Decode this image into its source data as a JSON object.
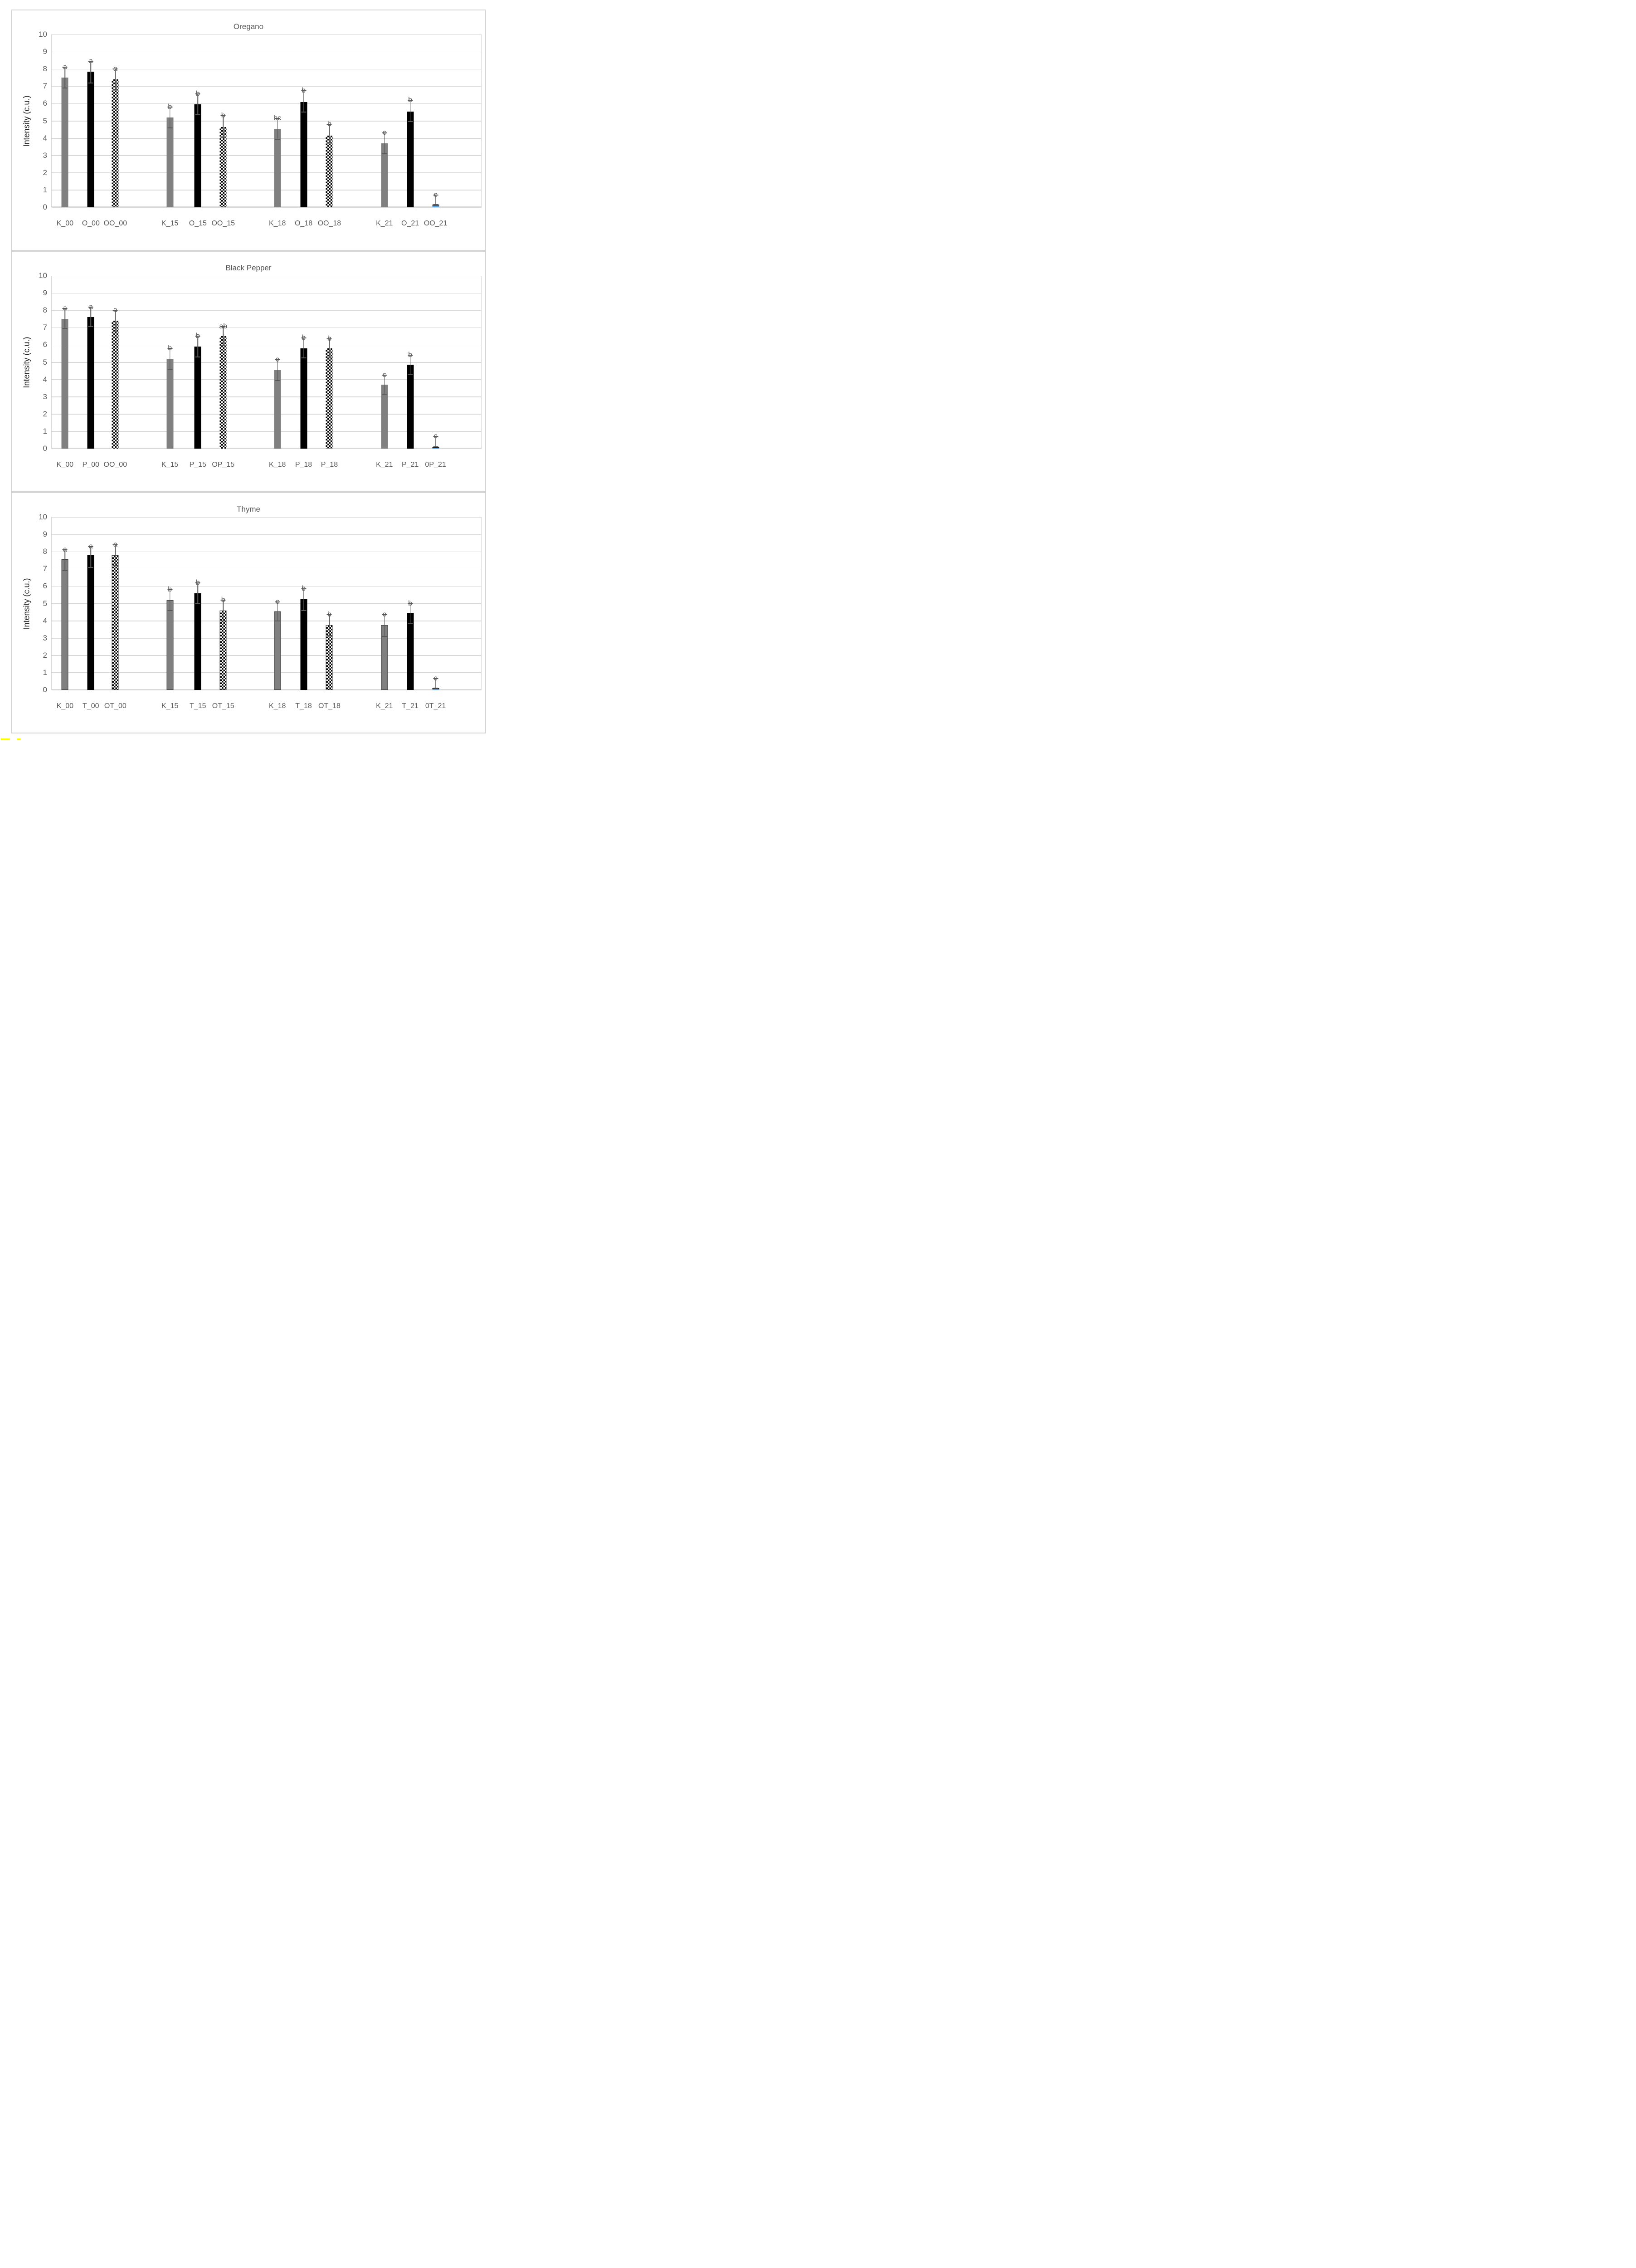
{
  "figure": {
    "ylabel": "Intensity (c.u.)",
    "yticks": [
      0,
      1,
      2,
      3,
      4,
      5,
      6,
      7,
      8,
      9,
      10
    ],
    "colors": {
      "bar_gray": "#808080",
      "bar_black": "#000000",
      "bar_blue": "#5b9bd5",
      "grid": "#d9d9d9",
      "text": "#595959",
      "highlight": "#ffff00"
    }
  },
  "chart_data": [
    {
      "type": "bar",
      "title": "Oregano",
      "ylabel": "Intensity (c.u.)",
      "ylim": [
        0,
        10
      ],
      "grid": true,
      "legend": false,
      "categories": [
        "K_00",
        "O_00",
        "OO_00",
        "K_15",
        "O_15",
        "OO_15",
        "K_18",
        "O_18",
        "OO_18",
        "K_21",
        "O_21",
        "OO_21"
      ],
      "values": [
        7.5,
        7.85,
        7.4,
        5.2,
        5.95,
        4.65,
        4.55,
        6.1,
        4.15,
        3.7,
        5.55,
        0.15
      ],
      "errors_low": [
        6.9,
        7.2,
        6.8,
        4.6,
        5.35,
        4.05,
        3.95,
        5.5,
        3.75,
        3.1,
        4.95,
        0.15
      ],
      "errors_high": [
        8.1,
        8.45,
        8.0,
        5.8,
        6.55,
        5.3,
        5.15,
        6.75,
        4.8,
        4.3,
        6.2,
        0.7
      ],
      "sig_letters": [
        "a",
        "a",
        "a",
        "b",
        "b",
        "b",
        "bc",
        "b",
        "b",
        "c",
        "b",
        "c"
      ],
      "bar_styles": [
        "gray",
        "black",
        "checker",
        "gray",
        "black",
        "checker",
        "gray",
        "black",
        "checker",
        "gray",
        "black",
        "blue"
      ],
      "outlined": false
    },
    {
      "type": "bar",
      "title": "Black Pepper",
      "ylabel": "Intensity (c.u.)",
      "ylim": [
        0,
        10
      ],
      "grid": true,
      "legend": false,
      "categories": [
        "K_00",
        "P_00",
        "OO_00",
        "K_15",
        "P_15",
        "OP_15",
        "K_18",
        "P_18",
        "P_18",
        "K_21",
        "P_21",
        "0P_21"
      ],
      "values": [
        7.5,
        7.6,
        7.4,
        5.2,
        5.9,
        6.5,
        4.55,
        5.8,
        5.8,
        3.7,
        4.85,
        0.1
      ],
      "errors_low": [
        6.95,
        7.05,
        6.8,
        4.6,
        5.3,
        5.95,
        3.95,
        5.25,
        5.25,
        3.15,
        4.3,
        0.1
      ],
      "errors_high": [
        8.1,
        8.2,
        8.0,
        5.8,
        6.5,
        7.05,
        5.15,
        6.4,
        6.35,
        4.25,
        5.4,
        0.7
      ],
      "sig_letters": [
        "a",
        "a",
        "a",
        "b",
        "b",
        "ab",
        "c",
        "b",
        "b",
        "c",
        "b",
        "c"
      ],
      "bar_styles": [
        "gray",
        "black",
        "checker",
        "gray",
        "black",
        "checker",
        "gray",
        "black",
        "checker",
        "gray",
        "black",
        "blue"
      ],
      "outlined": false
    },
    {
      "type": "bar",
      "title": "Thyme",
      "ylabel": "Intensity (c.u.)",
      "ylim": [
        0,
        10
      ],
      "grid": true,
      "legend": false,
      "categories": [
        "K_00",
        "T_00",
        "OT_00",
        "K_15",
        "T_15",
        "OT_15",
        "K_18",
        "T_18",
        "OT_18",
        "K_21",
        "T_21",
        "0T_21"
      ],
      "values": [
        7.55,
        7.8,
        7.8,
        5.2,
        5.6,
        4.6,
        4.55,
        5.25,
        3.75,
        3.75,
        4.45,
        0.1
      ],
      "errors_low": [
        6.9,
        7.1,
        7.2,
        4.6,
        5.0,
        4.0,
        4.0,
        4.6,
        3.15,
        3.1,
        3.85,
        0.1
      ],
      "errors_high": [
        8.1,
        8.3,
        8.4,
        5.8,
        6.2,
        5.2,
        5.1,
        5.85,
        4.35,
        4.35,
        5.0,
        0.65
      ],
      "sig_letters": [
        "a",
        "a",
        "a",
        "b",
        "b",
        "b",
        "c",
        "b",
        "b",
        "c",
        "b",
        "c"
      ],
      "bar_styles": [
        "gray",
        "black",
        "checker",
        "gray",
        "black",
        "checker",
        "gray",
        "black",
        "checker",
        "gray",
        "black",
        "blue"
      ],
      "outlined": true
    }
  ]
}
